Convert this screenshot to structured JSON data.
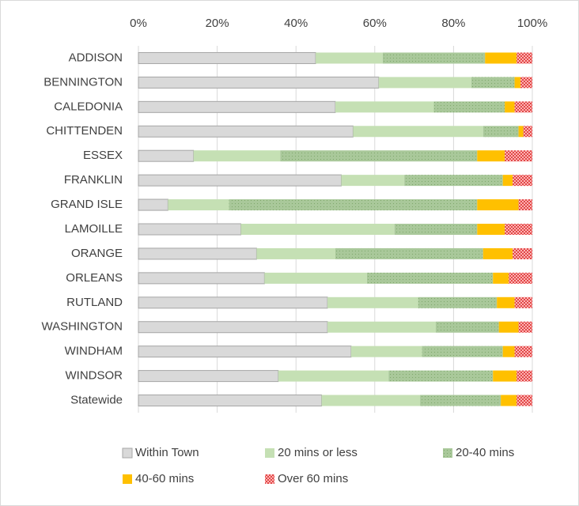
{
  "chart_data": {
    "type": "stacked_bar_horizontal_percent",
    "categories": [
      "ADDISON",
      "BENNINGTON",
      "CALEDONIA",
      "CHITTENDEN",
      "ESSEX",
      "FRANKLIN",
      "GRAND ISLE",
      "LAMOILLE",
      "ORANGE",
      "ORLEANS",
      "RUTLAND",
      "WASHINGTON",
      "WINDHAM",
      "WINDSOR",
      "Statewide"
    ],
    "series": [
      {
        "name": "Within Town",
        "color": "#d9d9d9",
        "values": [
          45,
          61,
          50,
          54.5,
          14,
          51.5,
          7.5,
          26,
          30,
          32,
          48,
          48,
          54,
          35.5,
          46.5
        ]
      },
      {
        "name": "20 mins or less",
        "color": "#c5e0b4",
        "values": [
          17,
          23.5,
          25,
          33,
          22,
          16,
          15.5,
          39,
          20,
          26,
          23,
          27.5,
          18,
          28,
          25
        ]
      },
      {
        "name": "20-40 mins",
        "color": "#a9c89a",
        "values": [
          26,
          11,
          18,
          9,
          50,
          25,
          63,
          21,
          37.5,
          32,
          20,
          16,
          20.5,
          26.5,
          20.5
        ]
      },
      {
        "name": "40-60 mins",
        "color": "#ffc000",
        "values": [
          8,
          1.5,
          2.5,
          1.2,
          7,
          2.5,
          10.5,
          7,
          7.5,
          4,
          4.5,
          5,
          3,
          6,
          4
        ]
      },
      {
        "name": "Over 60 mins",
        "color": "#ff8080",
        "values": [
          4,
          3,
          4.5,
          2.3,
          7,
          5,
          3.5,
          7,
          5,
          6,
          4.5,
          3.5,
          4.5,
          4,
          4
        ]
      }
    ],
    "xlim": [
      0,
      100
    ],
    "xticks": [
      {
        "value": 0,
        "label": "0%"
      },
      {
        "value": 20,
        "label": "20%"
      },
      {
        "value": 40,
        "label": "40%"
      },
      {
        "value": 60,
        "label": "60%"
      },
      {
        "value": 80,
        "label": "80%"
      },
      {
        "value": 100,
        "label": "100%"
      }
    ],
    "grid": true,
    "legend": "bottom"
  }
}
